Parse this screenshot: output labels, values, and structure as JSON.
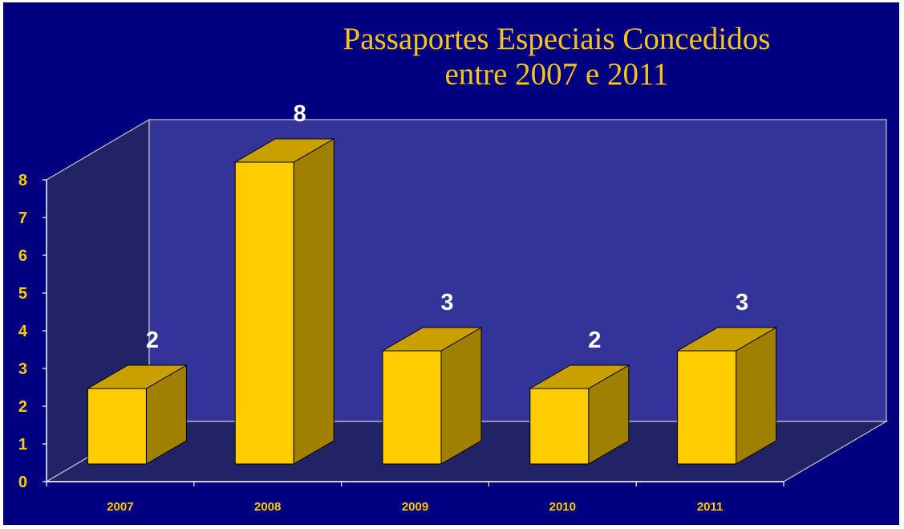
{
  "colors": {
    "background": "#000080",
    "back_wall": "#333399",
    "side_wall": "#222266",
    "floor": "#222266",
    "bar_front": "#ffcc00",
    "bar_top": "#c9a000",
    "bar_side": "#a08000",
    "axis_text": "#ffcc00",
    "data_label": "#ffffff",
    "title": "#f5c518"
  },
  "chart_data": {
    "type": "bar",
    "style": "3d-column",
    "title_lines": [
      "Passaportes Especiais Concedidos",
      "entre 2007 e 2011"
    ],
    "categories": [
      "2007",
      "2008",
      "2009",
      "2010",
      "2011"
    ],
    "values": [
      2,
      8,
      3,
      2,
      3
    ],
    "data_labels": [
      "2",
      "8",
      "3",
      "2",
      "3"
    ],
    "y_ticks": [
      "0",
      "1",
      "2",
      "3",
      "4",
      "5",
      "6",
      "7",
      "8"
    ],
    "ylim": [
      0,
      8
    ],
    "xlabel": "",
    "ylabel": "",
    "grid": false,
    "legend": "none"
  }
}
